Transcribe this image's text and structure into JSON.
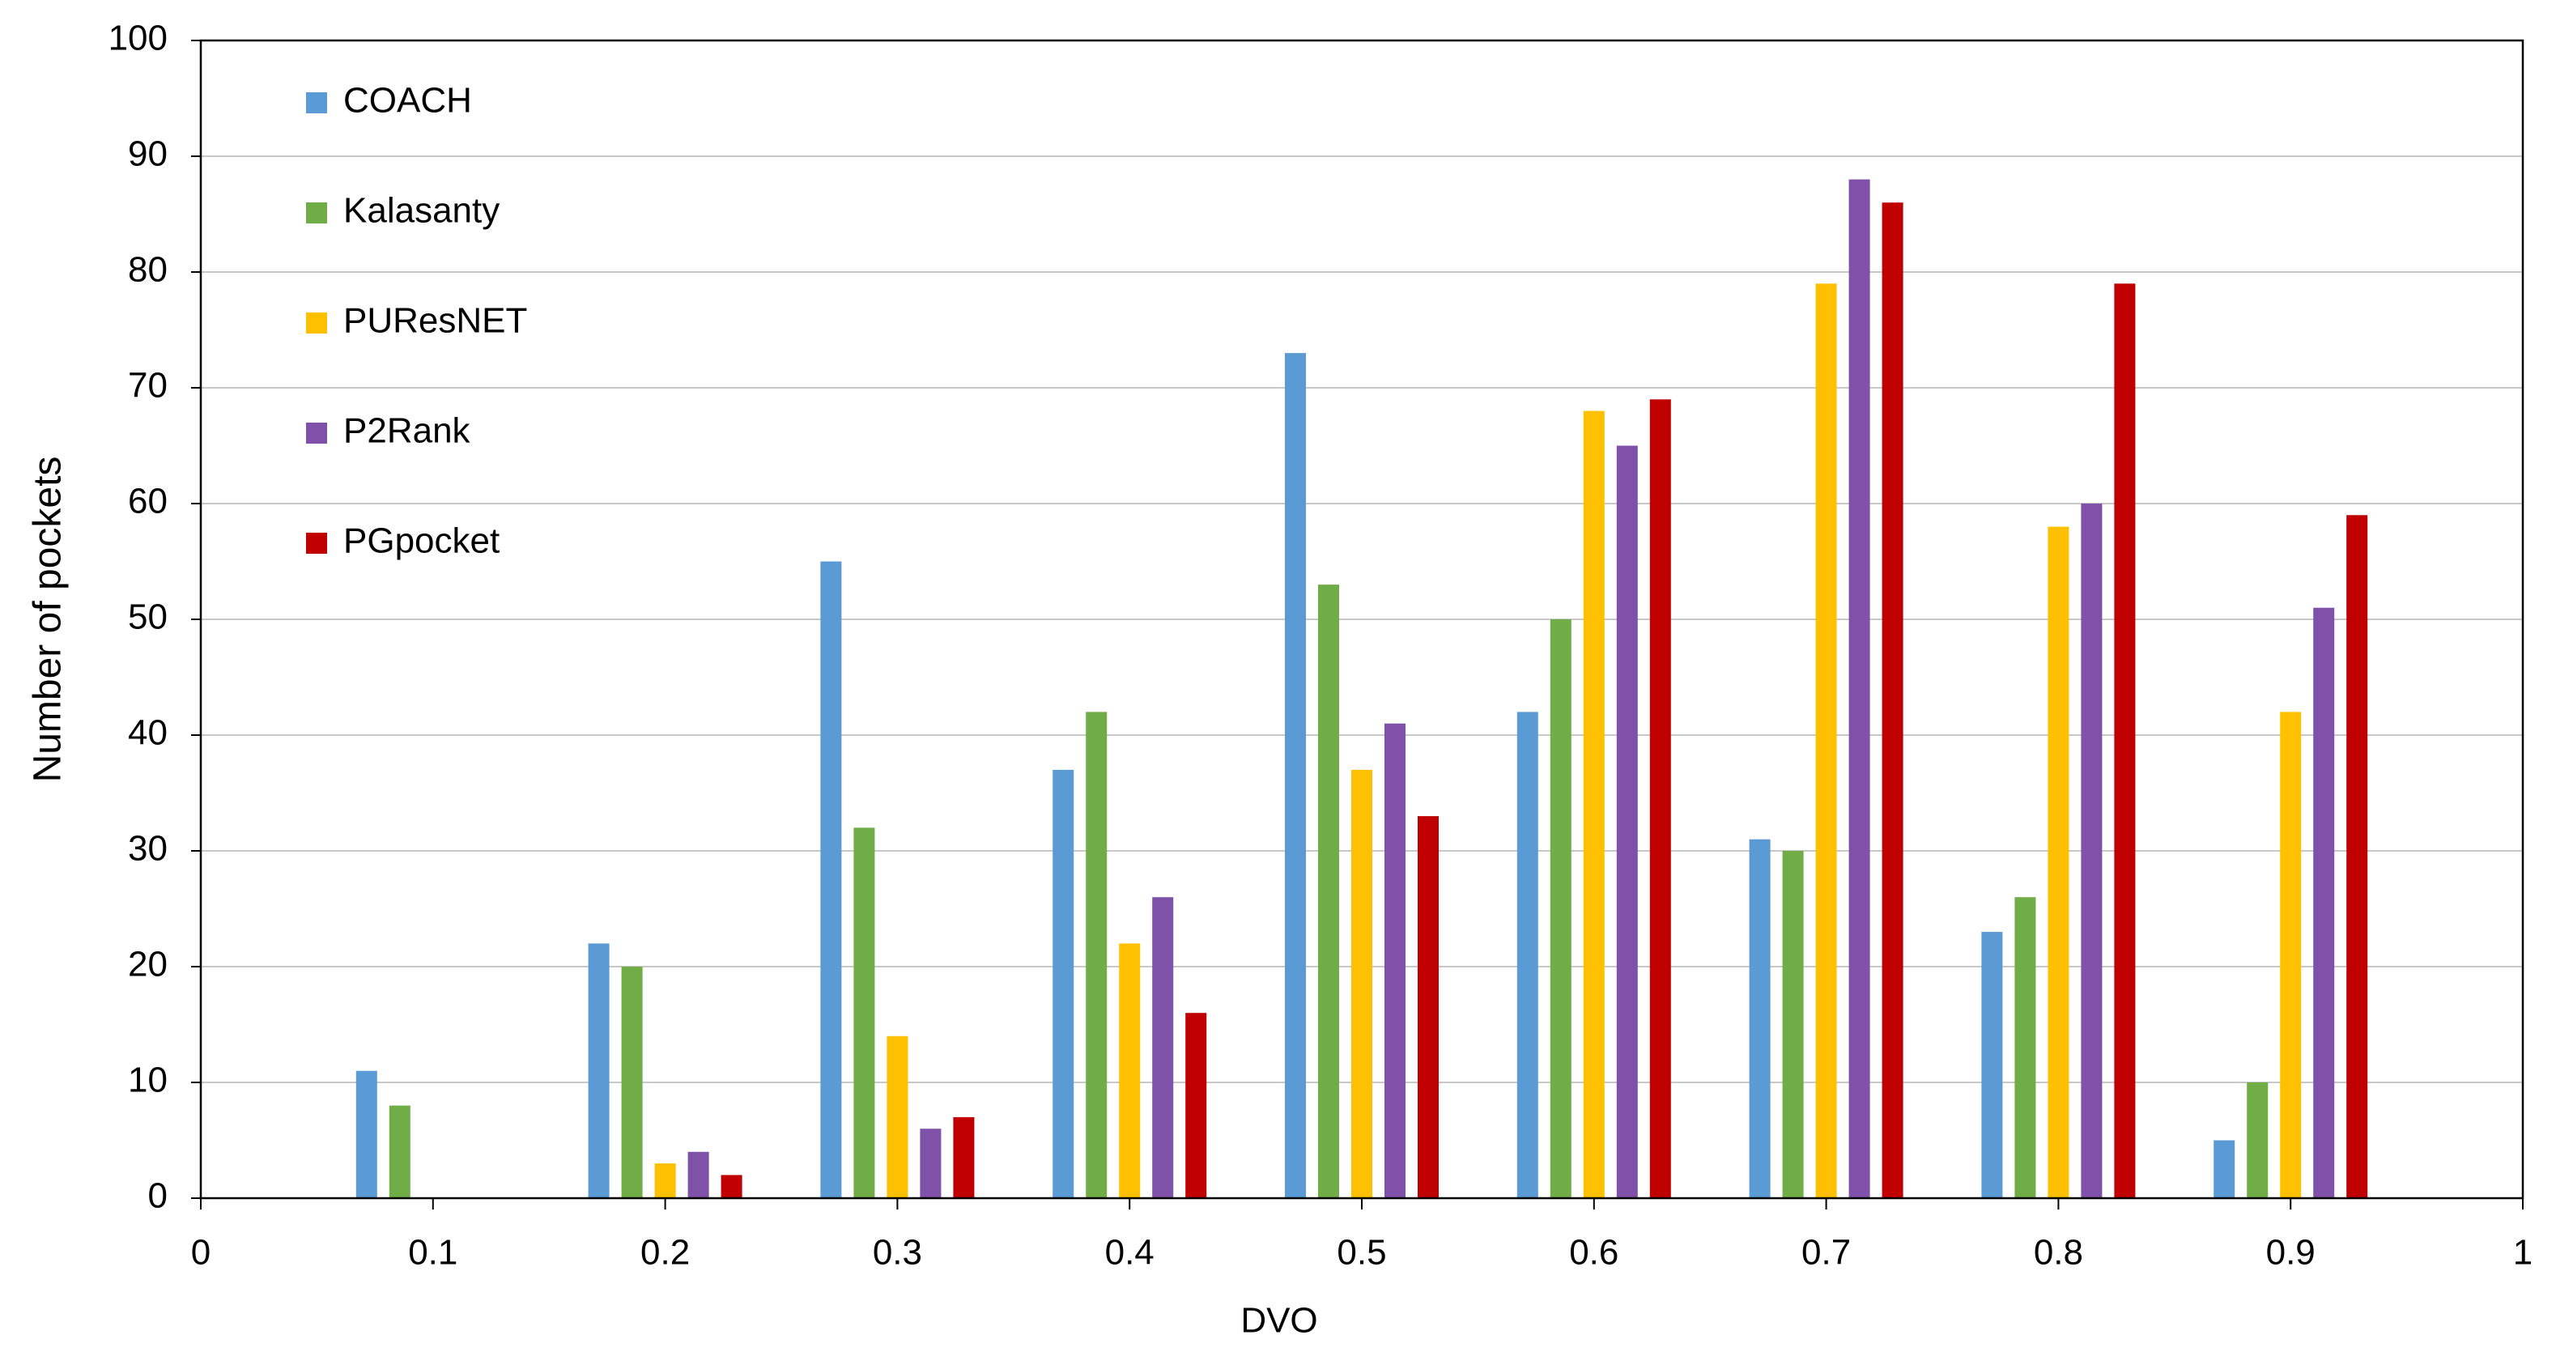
{
  "chart_data": {
    "type": "bar",
    "x_label": "DVO",
    "y_label": "Number of pockets",
    "x": [
      0.1,
      0.2,
      0.3,
      0.4,
      0.5,
      0.6,
      0.7,
      0.8,
      0.9
    ],
    "series": [
      {
        "name": "COACH",
        "color": "#5b9bd5",
        "values": [
          11,
          22,
          55,
          37,
          73,
          42,
          31,
          23,
          5
        ]
      },
      {
        "name": "Kalasanty",
        "color": "#70ad47",
        "values": [
          8,
          20,
          32,
          42,
          53,
          50,
          30,
          26,
          10
        ]
      },
      {
        "name": "PUResNET",
        "color": "#ffc000",
        "values": [
          0,
          3,
          14,
          22,
          37,
          68,
          79,
          58,
          42
        ]
      },
      {
        "name": "P2Rank",
        "color": "#7f51a8",
        "values": [
          0,
          4,
          6,
          26,
          41,
          65,
          88,
          60,
          51
        ]
      },
      {
        "name": "PGpocket",
        "color": "#c00000",
        "values": [
          0,
          2,
          7,
          16,
          33,
          69,
          86,
          79,
          59
        ]
      }
    ],
    "xlim": [
      0,
      1
    ],
    "xticks": [
      0,
      0.1,
      0.2,
      0.3,
      0.4,
      0.5,
      0.6,
      0.7,
      0.8,
      0.9,
      1
    ],
    "ylim": [
      0,
      100
    ],
    "yticks": [
      0,
      10,
      20,
      30,
      40,
      50,
      60,
      70,
      80,
      90,
      100
    ],
    "grid": true,
    "legend": "upper left"
  }
}
